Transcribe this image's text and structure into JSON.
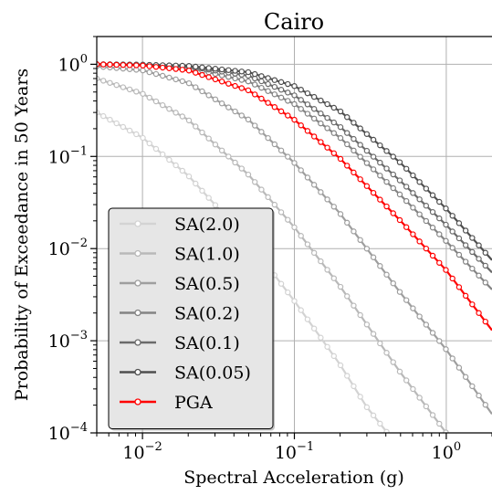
{
  "chart_data": {
    "type": "line",
    "title": "Cairo",
    "xlabel": "Spectral Acceleration (g)",
    "ylabel": "Probability of Exceedance in 50 Years",
    "xscale": "log",
    "yscale": "log",
    "xlim": [
      0.005,
      2.0
    ],
    "ylim": [
      0.0001,
      2.0
    ],
    "x_ticks": [
      {
        "value": 0.01,
        "base": "10",
        "exp": "−2"
      },
      {
        "value": 0.1,
        "base": "10",
        "exp": "−1"
      },
      {
        "value": 1,
        "base": "10",
        "exp": "0"
      }
    ],
    "y_ticks": [
      {
        "value": 1,
        "base": "10",
        "exp": "0"
      },
      {
        "value": 0.1,
        "base": "10",
        "exp": "−1"
      },
      {
        "value": 0.01,
        "base": "10",
        "exp": "−2"
      },
      {
        "value": 0.001,
        "base": "10",
        "exp": "−3"
      },
      {
        "value": 0.0001,
        "base": "10",
        "exp": "−4"
      }
    ],
    "grid": true,
    "legend_position": "lower-left",
    "series": [
      {
        "name": "SA(2.0)",
        "color": "#d3d3d3",
        "points": [
          [
            0.005,
            0.3
          ],
          [
            0.01,
            0.16
          ],
          [
            0.02,
            0.062
          ],
          [
            0.05,
            0.012
          ],
          [
            0.1,
            0.0027
          ],
          [
            0.2,
            0.00055
          ],
          [
            0.3,
            0.00019
          ],
          [
            0.41,
            0.0001
          ]
        ]
      },
      {
        "name": "SA(1.0)",
        "color": "#b9b9b9",
        "points": [
          [
            0.005,
            0.7
          ],
          [
            0.01,
            0.48
          ],
          [
            0.02,
            0.25
          ],
          [
            0.05,
            0.063
          ],
          [
            0.1,
            0.017
          ],
          [
            0.2,
            0.0039
          ],
          [
            0.5,
            0.00045
          ],
          [
            1.0,
            0.0001
          ]
        ]
      },
      {
        "name": "SA(0.5)",
        "color": "#9e9e9e",
        "points": [
          [
            0.005,
            0.95
          ],
          [
            0.01,
            0.86
          ],
          [
            0.02,
            0.63
          ],
          [
            0.05,
            0.25
          ],
          [
            0.1,
            0.085
          ],
          [
            0.2,
            0.024
          ],
          [
            0.5,
            0.0033
          ],
          [
            1.0,
            0.0008
          ],
          [
            2.0,
            0.00016
          ]
        ]
      },
      {
        "name": "SA(0.2)",
        "color": "#848484",
        "points": [
          [
            0.005,
            1.0
          ],
          [
            0.01,
            0.98
          ],
          [
            0.02,
            0.92
          ],
          [
            0.05,
            0.65
          ],
          [
            0.1,
            0.37
          ],
          [
            0.2,
            0.16
          ],
          [
            0.5,
            0.038
          ],
          [
            1.0,
            0.012
          ],
          [
            2.0,
            0.0036
          ]
        ]
      },
      {
        "name": "SA(0.1)",
        "color": "#6a6a6a",
        "points": [
          [
            0.005,
            1.0
          ],
          [
            0.01,
            0.99
          ],
          [
            0.02,
            0.95
          ],
          [
            0.05,
            0.75
          ],
          [
            0.1,
            0.46
          ],
          [
            0.2,
            0.21
          ],
          [
            0.5,
            0.054
          ],
          [
            1.0,
            0.018
          ],
          [
            2.0,
            0.0055
          ]
        ]
      },
      {
        "name": "SA(0.05)",
        "color": "#4f4f4f",
        "points": [
          [
            0.005,
            1.0
          ],
          [
            0.01,
            0.99
          ],
          [
            0.02,
            0.96
          ],
          [
            0.05,
            0.82
          ],
          [
            0.1,
            0.58
          ],
          [
            0.2,
            0.31
          ],
          [
            0.5,
            0.085
          ],
          [
            1.0,
            0.027
          ],
          [
            2.0,
            0.0075
          ]
        ]
      },
      {
        "name": "PGA",
        "color": "#ff0000",
        "points": [
          [
            0.005,
            1.0
          ],
          [
            0.01,
            0.97
          ],
          [
            0.02,
            0.86
          ],
          [
            0.05,
            0.52
          ],
          [
            0.1,
            0.25
          ],
          [
            0.2,
            0.095
          ],
          [
            0.5,
            0.02
          ],
          [
            1.0,
            0.0058
          ],
          [
            2.0,
            0.0013
          ]
        ]
      }
    ]
  }
}
